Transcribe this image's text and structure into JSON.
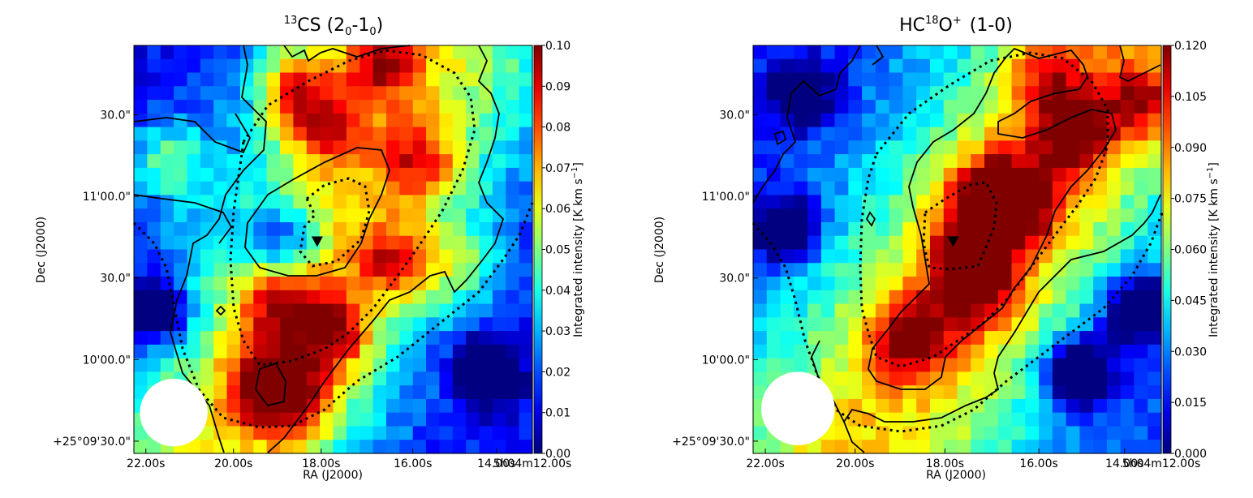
{
  "chart_data": [
    {
      "type": "heatmap",
      "title_parts": [
        "13",
        "CS (2",
        "0",
        "-1",
        "0",
        ")"
      ],
      "xlabel": "RA (J2000)",
      "ylabel": "Dec (J2000)",
      "x_ticks": [
        "22.00s",
        "20.00s",
        "18.00s",
        "16.00s",
        "14.00s",
        "5h04m12.00s"
      ],
      "y_ticks": [
        "30.0\"",
        "11'00.0\"",
        "30.0\"",
        "10'00.0\"",
        "+25°09'30.0\""
      ],
      "colorbar_label": "Integrated intensity [K km s",
      "colorbar_label_exp": "−1",
      "colorbar_label_end": "]",
      "colorbar_ticks": [
        "0.10",
        "0.09",
        "0.08",
        "0.07",
        "0.06",
        "0.05",
        "0.04",
        "0.03",
        "0.02",
        "0.01",
        "0.00"
      ],
      "colorbar_range": [
        0.0,
        0.1
      ],
      "colormap": "jet",
      "peaks": [
        {
          "x": 0.4,
          "y": 0.9,
          "v": 0.045
        },
        {
          "x": 0.62,
          "y": 0.96,
          "v": 0.04
        },
        {
          "x": 0.48,
          "y": 0.8,
          "v": 0.035
        },
        {
          "x": 0.72,
          "y": 0.71,
          "v": 0.035
        },
        {
          "x": 0.09,
          "y": 0.72,
          "v": 0.03
        },
        {
          "x": 0.65,
          "y": 0.47,
          "v": 0.04
        },
        {
          "x": 0.82,
          "y": 0.46,
          "v": 0.025
        },
        {
          "x": 0.36,
          "y": 0.36,
          "v": 0.035
        },
        {
          "x": 0.5,
          "y": 0.29,
          "v": 0.045
        },
        {
          "x": 0.33,
          "y": 0.16,
          "v": 0.05
        },
        {
          "x": 0.42,
          "y": 0.12,
          "v": 0.03
        }
      ],
      "ridge": {
        "x0": 0.22,
        "y0": 0.0,
        "x1": 0.75,
        "y1": 1.0,
        "width": 0.22,
        "v": 0.05
      },
      "holes": [
        {
          "x": 0.37,
          "y": 0.52,
          "v": 0.035
        },
        {
          "x": 0.88,
          "y": 0.2,
          "v": 0.04
        },
        {
          "x": 0.05,
          "y": 0.35,
          "v": 0.045
        }
      ],
      "base": 0.012,
      "cells": 30,
      "marker": {
        "x": 0.46,
        "y": 0.52
      },
      "beam": {
        "x": 0.1,
        "y": 0.1,
        "r": 0.085
      }
    },
    {
      "type": "heatmap",
      "title_parts": [
        "HC",
        "18",
        "O",
        "+",
        "(1-0)"
      ],
      "xlabel": "RA (J2000)",
      "ylabel": "Dec (J2000)",
      "x_ticks": [
        "22.00s",
        "20.00s",
        "18.00s",
        "16.00s",
        "14.00s",
        "5h04m12.00s"
      ],
      "y_ticks": [
        "30.0\"",
        "11'00.0\"",
        "30.0\"",
        "10'00.0\"",
        "+25°09'30.0\""
      ],
      "colorbar_label": "Integrated intensity [K km s",
      "colorbar_label_exp": "−1",
      "colorbar_label_end": "]",
      "colorbar_ticks": [
        "0.120",
        "0.105",
        "0.090",
        "0.075",
        "0.060",
        "0.045",
        "0.030",
        "0.015",
        "0.000"
      ],
      "colorbar_range": [
        0.0,
        0.12
      ],
      "colormap": "jet",
      "peaks": [
        {
          "x": 0.58,
          "y": 0.64,
          "v": 0.055
        },
        {
          "x": 0.66,
          "y": 0.6,
          "v": 0.05
        },
        {
          "x": 0.78,
          "y": 0.78,
          "v": 0.05
        },
        {
          "x": 0.95,
          "y": 0.86,
          "v": 0.045
        },
        {
          "x": 0.52,
          "y": 0.5,
          "v": 0.045
        },
        {
          "x": 0.56,
          "y": 0.4,
          "v": 0.045
        },
        {
          "x": 0.39,
          "y": 0.29,
          "v": 0.055
        },
        {
          "x": 0.72,
          "y": 0.92,
          "v": 0.035
        }
      ],
      "ridge": {
        "x0": 0.25,
        "y0": 0.0,
        "x1": 0.9,
        "y1": 1.0,
        "width": 0.24,
        "v": 0.06
      },
      "holes": [
        {
          "x": 0.8,
          "y": 0.2,
          "v": 0.07
        },
        {
          "x": 0.95,
          "y": 0.35,
          "v": 0.06
        },
        {
          "x": 0.08,
          "y": 0.55,
          "v": 0.05
        },
        {
          "x": 0.12,
          "y": 0.88,
          "v": 0.045
        }
      ],
      "base": 0.02,
      "cells": 30,
      "marker": {
        "x": 0.49,
        "y": 0.52
      },
      "beam": {
        "x": 0.11,
        "y": 0.11,
        "r": 0.09
      }
    }
  ]
}
